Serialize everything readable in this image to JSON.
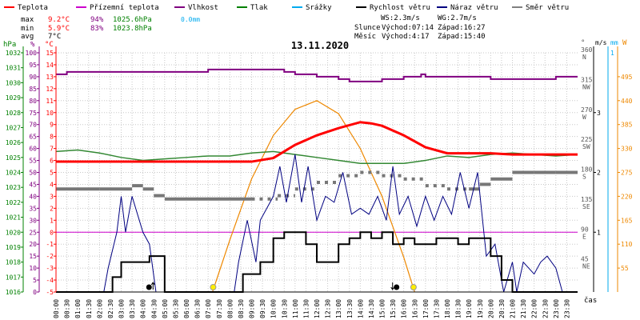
{
  "legend": [
    {
      "label": "Teplota",
      "color": "#ff0000"
    },
    {
      "label": "Přízemní teplota",
      "color": "#cc00cc"
    },
    {
      "label": "Vlhkost",
      "color": "#800080"
    },
    {
      "label": "Tlak",
      "color": "#008000"
    },
    {
      "label": "Srážky",
      "color": "#00aaee"
    },
    {
      "label": "Rychlost větru",
      "color": "#000000"
    },
    {
      "label": "Náraz větru",
      "color": "#000080"
    },
    {
      "label": "Směr větru",
      "color": "#808080"
    }
  ],
  "stats": {
    "max_label": "max",
    "max_temp": "9.2°C",
    "max_hum": "94%",
    "max_press": "1025.6hPa",
    "max_rain": "0.0mm",
    "min_label": "min",
    "min_temp": "5.9°C",
    "min_hum": "83%",
    "min_press": "1023.8hPa",
    "avg_label": "avg",
    "avg_temp": "7°C"
  },
  "wind": {
    "ws": "WS:2.3m/s",
    "wg": "WG:2.7m/s"
  },
  "sun": {
    "label": "Slunce",
    "rise": "Východ:07:14",
    "set": "Západ:16:27"
  },
  "moon": {
    "label": "Měsíc",
    "rise": "Východ:4:17",
    "set": "Západ:15:40"
  },
  "date": "13.11.2020",
  "units": {
    "hpa": "hPa",
    "pct": "%",
    "degc": "°C",
    "deg": "°",
    "ms": "m/s",
    "mm": "mm",
    "w": "W",
    "cas": "čas"
  },
  "colors": {
    "temp": "#ff0000",
    "hum": "#800080",
    "press": "#338833",
    "dir": "#777777",
    "speed": "#000000",
    "gust": "#000080",
    "sun": "#ee8800",
    "rain": "#00aaee",
    "ground": "#cc00cc",
    "grid": "#c8c8c8",
    "axis_hpa": "#008000",
    "axis_pct": "#800080",
    "axis_temp": "#ff0000"
  },
  "chart_data": {
    "type": "line",
    "x_unit": "hour",
    "xlim": [
      0,
      24
    ],
    "x_ticks": [
      "00:00",
      "00:30",
      "01:00",
      "01:30",
      "02:00",
      "02:30",
      "03:00",
      "03:30",
      "04:00",
      "04:30",
      "05:00",
      "05:30",
      "06:00",
      "06:30",
      "07:00",
      "07:30",
      "08:00",
      "08:30",
      "09:00",
      "09:30",
      "10:00",
      "10:30",
      "11:00",
      "11:30",
      "12:00",
      "12:30",
      "13:00",
      "13:30",
      "14:00",
      "14:30",
      "15:00",
      "15:30",
      "16:00",
      "16:30",
      "17:00",
      "17:30",
      "18:00",
      "18:30",
      "19:00",
      "19:30",
      "20:00",
      "20:30",
      "21:00",
      "21:30",
      "22:00",
      "22:30",
      "23:00",
      "23:30"
    ],
    "axes": {
      "temp_c": {
        "range": [
          -5,
          15
        ],
        "ticks": [
          -5,
          -4,
          -3,
          -2,
          -1,
          0,
          1,
          2,
          3,
          4,
          5,
          6,
          7,
          8,
          9,
          10,
          11,
          12,
          13,
          14,
          15
        ]
      },
      "humidity_pct": {
        "range": [
          0,
          100
        ],
        "ticks": [
          0,
          5,
          10,
          15,
          20,
          25,
          30,
          35,
          40,
          45,
          50,
          55,
          60,
          65,
          70,
          75,
          80,
          85,
          90,
          95,
          100
        ]
      },
      "pressure_hpa": {
        "range": [
          1016,
          1032
        ],
        "ticks": [
          1016,
          1017,
          1018,
          1019,
          1020,
          1021,
          1022,
          1023,
          1024,
          1025,
          1026,
          1027,
          1028,
          1029,
          1030,
          1031,
          1032
        ]
      },
      "wind_dir_deg": {
        "range": [
          0,
          360
        ],
        "ticks": [
          0,
          45,
          90,
          135,
          180,
          225,
          270,
          315,
          360
        ],
        "labels": [
          "",
          "NE",
          "E",
          "SE",
          "S",
          "SW",
          "W",
          "NW",
          "N"
        ]
      },
      "wind_ms": {
        "range": [
          0,
          4
        ],
        "ticks": [
          1,
          2,
          3
        ]
      },
      "rain_mm": {
        "range": [
          0,
          1
        ],
        "ticks": [
          1
        ]
      },
      "solar_w": {
        "range": [
          0,
          550
        ],
        "ticks": [
          55,
          110,
          165,
          220,
          275,
          330,
          385,
          440,
          495
        ]
      }
    },
    "series": [
      {
        "name": "Teplota",
        "axis": "temp_c",
        "x": [
          0,
          4,
          5,
          8,
          9,
          10,
          11,
          12,
          13,
          14,
          14.5,
          15,
          16,
          17,
          18,
          19,
          20,
          21,
          22,
          23,
          24
        ],
        "y": [
          5.9,
          5.9,
          5.9,
          5.9,
          5.9,
          6.2,
          7.3,
          8.1,
          8.7,
          9.2,
          9.1,
          8.9,
          8.1,
          7.1,
          6.6,
          6.6,
          6.6,
          6.5,
          6.5,
          6.5,
          6.5
        ]
      },
      {
        "name": "Vlhkost",
        "axis": "humidity_pct",
        "x": [
          0,
          0.5,
          5,
          6,
          7,
          8,
          9,
          10,
          10.5,
          11,
          12,
          13,
          13.5,
          14,
          15,
          16,
          16.8,
          17,
          18,
          19,
          20,
          21,
          22,
          22.5,
          23,
          24
        ],
        "y": [
          91,
          92,
          92,
          92,
          93,
          93,
          93,
          93,
          92,
          91,
          90,
          89,
          88,
          88,
          89,
          90,
          91,
          90,
          90,
          90,
          89,
          89,
          89,
          89,
          90,
          90
        ]
      },
      {
        "name": "Tlak",
        "axis": "pressure_hpa",
        "x": [
          0,
          1,
          2,
          3,
          4,
          5,
          6,
          7,
          8,
          9,
          10,
          11,
          12,
          13,
          14,
          15,
          16,
          17,
          18,
          19,
          20,
          21,
          22,
          23,
          24
        ],
        "y": [
          1025.4,
          1025.5,
          1025.3,
          1025.0,
          1024.8,
          1024.9,
          1025.0,
          1025.1,
          1025.1,
          1025.3,
          1025.4,
          1025.2,
          1025.0,
          1024.8,
          1024.6,
          1024.6,
          1024.6,
          1024.8,
          1025.1,
          1025.0,
          1025.2,
          1025.3,
          1025.2,
          1025.1,
          1025.2
        ]
      },
      {
        "name": "Směr větru",
        "axis": "wind_dir_deg",
        "x": [
          0,
          2,
          3.5,
          4,
          4.5,
          5,
          9,
          10.2,
          11,
          12,
          13,
          14,
          15,
          16,
          17,
          18,
          19,
          19.5,
          20,
          21,
          22,
          23,
          24
        ],
        "y": [
          155,
          155,
          160,
          155,
          145,
          140,
          140,
          145,
          155,
          165,
          175,
          180,
          175,
          170,
          160,
          155,
          155,
          162,
          170,
          180,
          180,
          180,
          180
        ]
      },
      {
        "name": "Rychlost větru",
        "axis": "wind_ms",
        "x": [
          0,
          2.2,
          2.6,
          3.0,
          3.5,
          4.0,
          4.3,
          5,
          8.2,
          8.6,
          9.4,
          10,
          10.5,
          11,
          11.5,
          12,
          12.5,
          13,
          13.5,
          14,
          14.5,
          15,
          15.5,
          16,
          16.5,
          17,
          17.5,
          18,
          18.5,
          19,
          19.5,
          20,
          20.5,
          21,
          21.5,
          22,
          22.5,
          23,
          24
        ],
        "y": [
          0,
          0,
          0.25,
          0.5,
          0.5,
          0.5,
          0.6,
          0,
          0,
          0.3,
          0.5,
          0.9,
          1.0,
          1.0,
          0.8,
          0.5,
          0.5,
          0.8,
          0.9,
          1.0,
          0.9,
          1.0,
          0.8,
          0.9,
          0.8,
          0.8,
          0.9,
          0.9,
          0.8,
          0.9,
          0.9,
          0.6,
          0.2,
          0,
          0,
          0,
          0,
          0,
          0
        ]
      },
      {
        "name": "Náraz větru",
        "axis": "wind_ms",
        "x": [
          0,
          2.2,
          2.4,
          2.8,
          3.0,
          3.2,
          3.5,
          4.0,
          4.3,
          4.6,
          5,
          8.2,
          8.4,
          8.8,
          9.2,
          9.4,
          10,
          10.3,
          10.6,
          11,
          11.3,
          11.6,
          12,
          12.4,
          12.8,
          13.2,
          13.6,
          14,
          14.4,
          14.8,
          15.2,
          15.5,
          15.8,
          16.2,
          16.6,
          17,
          17.4,
          17.8,
          18.2,
          18.6,
          19,
          19.4,
          19.8,
          20.2,
          20.6,
          21,
          21.2,
          21.5,
          22,
          22.3,
          22.6,
          23,
          23.3,
          24
        ],
        "y": [
          0,
          0,
          0.4,
          1.0,
          1.6,
          1.0,
          1.6,
          1.0,
          0.8,
          0,
          0,
          0,
          0.5,
          1.2,
          0.5,
          1.2,
          1.6,
          2.1,
          1.5,
          2.3,
          1.5,
          2.1,
          1.2,
          1.6,
          1.5,
          2.0,
          1.3,
          1.4,
          1.3,
          1.6,
          1.2,
          2.1,
          1.3,
          1.6,
          1.1,
          1.6,
          1.2,
          1.6,
          1.3,
          2.0,
          1.4,
          2.0,
          0.6,
          0.8,
          0,
          0.5,
          0,
          0.5,
          0.3,
          0.5,
          0.6,
          0.4,
          0,
          0
        ]
      },
      {
        "name": "Sluneční záření",
        "axis": "solar_w",
        "x": [
          7.2,
          8,
          9,
          10,
          11,
          12,
          13,
          14,
          15,
          16,
          16.5
        ],
        "y": [
          0,
          120,
          260,
          360,
          420,
          440,
          410,
          330,
          220,
          80,
          0
        ]
      }
    ],
    "markers": {
      "sunrise": 7.23,
      "sunset": 16.45,
      "moonrise": 4.28,
      "moonset": 15.67
    }
  }
}
